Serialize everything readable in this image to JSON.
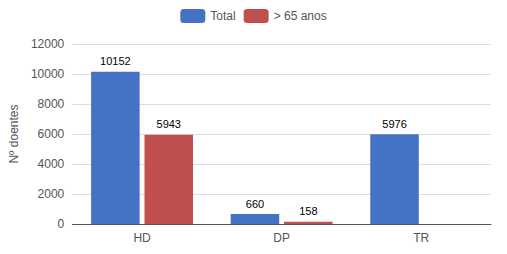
{
  "chart_data": {
    "type": "bar",
    "categories": [
      "HD",
      "DP",
      "TR"
    ],
    "series": [
      {
        "name": "Total",
        "color": "#4472C4",
        "values": [
          10152,
          660,
          5976
        ]
      },
      {
        "name": "> 65 anos",
        "color": "#C0504D",
        "values": [
          5943,
          158,
          null
        ]
      }
    ],
    "ylabel": "Nº doentes",
    "ylim": [
      0,
      12000
    ],
    "yticks": [
      0,
      2000,
      4000,
      6000,
      8000,
      10000,
      12000
    ],
    "grid": true,
    "legend": "top",
    "data_labels": true
  }
}
